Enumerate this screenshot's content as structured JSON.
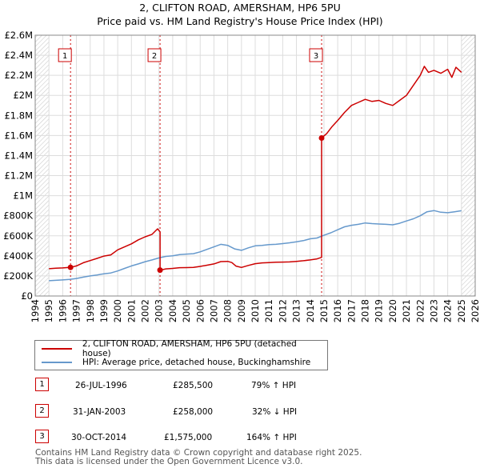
{
  "title_line1": "2, CLIFTON ROAD, AMERSHAM, HP6 5PU",
  "title_line2": "Price paid vs. HM Land Registry's House Price Index (HPI)",
  "colors": {
    "red": "#cc0000",
    "blue": "#6699cc",
    "hatch": "#cccccc",
    "vline": "#cc0000"
  },
  "chart_data": {
    "type": "line",
    "title": "2, CLIFTON ROAD, AMERSHAM, HP6 5PU — Price paid vs. HM Land Registry's House Price Index (HPI)",
    "xlabel": "",
    "ylabel": "",
    "xlim": [
      1994,
      2026
    ],
    "ylim": [
      0,
      2600000
    ],
    "y_ticks": [
      0,
      200000,
      400000,
      600000,
      800000,
      1000000,
      1200000,
      1400000,
      1600000,
      1800000,
      2000000,
      2200000,
      2400000,
      2600000
    ],
    "y_tick_labels": [
      "£0",
      "£200K",
      "£400K",
      "£600K",
      "£800K",
      "£1M",
      "£1.2M",
      "£1.4M",
      "£1.6M",
      "£1.8M",
      "£2M",
      "£2.2M",
      "£2.4M",
      "£2.6M"
    ],
    "x_ticks": [
      1994,
      1995,
      1996,
      1997,
      1998,
      1999,
      2000,
      2001,
      2002,
      2003,
      2004,
      2005,
      2006,
      2007,
      2008,
      2009,
      2010,
      2011,
      2012,
      2013,
      2014,
      2015,
      2016,
      2017,
      2018,
      2019,
      2020,
      2021,
      2022,
      2023,
      2024,
      2025,
      2026
    ],
    "x_tick_labels": [
      "1994",
      "1995",
      "1996",
      "1997",
      "1998",
      "1999",
      "2000",
      "2001",
      "2002",
      "2003",
      "2004",
      "2005",
      "2006",
      "2007",
      "2008",
      "2009",
      "2010",
      "2011",
      "2012",
      "2013",
      "2014",
      "2015",
      "2016",
      "2017",
      "2018",
      "2019",
      "2020",
      "2021",
      "2022",
      "2023",
      "2024",
      "2025",
      "2026"
    ],
    "hatched_ranges": [
      [
        1994,
        1995
      ],
      [
        2025,
        2026
      ]
    ],
    "grid": true,
    "series": [
      {
        "name": "2, CLIFTON ROAD, AMERSHAM, HP6 5PU (detached house)",
        "color": "#cc0000",
        "x": [
          1995.0,
          1995.5,
          1996.0,
          1996.3,
          1996.57,
          1996.57,
          1997.0,
          1997.5,
          1998.0,
          1998.5,
          1999.0,
          1999.5,
          2000.0,
          2000.5,
          2001.0,
          2001.5,
          2002.0,
          2002.5,
          2002.9,
          2003.08,
          2003.08,
          2003.5,
          2004.0,
          2004.5,
          2005.0,
          2005.5,
          2006.0,
          2006.5,
          2007.0,
          2007.5,
          2008.0,
          2008.3,
          2008.6,
          2009.0,
          2009.5,
          2010.0,
          2010.5,
          2011.0,
          2011.5,
          2012.0,
          2012.5,
          2013.0,
          2013.5,
          2014.0,
          2014.5,
          2014.83,
          2014.83,
          2015.2,
          2015.6,
          2016.0,
          2016.5,
          2017.0,
          2017.5,
          2018.0,
          2018.5,
          2019.0,
          2019.5,
          2020.0,
          2020.5,
          2021.0,
          2021.5,
          2022.0,
          2022.3,
          2022.6,
          2023.0,
          2023.5,
          2024.0,
          2024.3,
          2024.6,
          2025.0
        ],
        "values": [
          272000,
          277000,
          280000,
          283000,
          285500,
          285500,
          300000,
          332000,
          353000,
          375000,
          398000,
          410000,
          460000,
          490000,
          520000,
          560000,
          590000,
          615000,
          670000,
          640000,
          258000,
          270000,
          275000,
          282000,
          283000,
          285000,
          295000,
          307000,
          320000,
          343000,
          345000,
          333000,
          298000,
          285000,
          305000,
          322000,
          330000,
          333000,
          337000,
          338000,
          340000,
          345000,
          352000,
          360000,
          370000,
          385000,
          1575000,
          1620000,
          1690000,
          1750000,
          1830000,
          1900000,
          1930000,
          1960000,
          1940000,
          1950000,
          1920000,
          1900000,
          1950000,
          2000000,
          2100000,
          2200000,
          2290000,
          2230000,
          2250000,
          2220000,
          2260000,
          2180000,
          2280000,
          2230000
        ]
      },
      {
        "name": "HPI: Average price, detached house, Buckinghamshire",
        "color": "#6699cc",
        "x": [
          1995.0,
          1995.5,
          1996.0,
          1996.5,
          1997.0,
          1997.5,
          1998.0,
          1998.5,
          1999.0,
          1999.5,
          2000.0,
          2000.5,
          2001.0,
          2001.5,
          2002.0,
          2002.5,
          2003.0,
          2003.5,
          2004.0,
          2004.5,
          2005.0,
          2005.5,
          2006.0,
          2006.5,
          2007.0,
          2007.5,
          2008.0,
          2008.5,
          2009.0,
          2009.5,
          2010.0,
          2010.5,
          2011.0,
          2011.5,
          2012.0,
          2012.5,
          2013.0,
          2013.5,
          2014.0,
          2014.5,
          2015.0,
          2015.5,
          2016.0,
          2016.5,
          2017.0,
          2017.5,
          2018.0,
          2018.5,
          2019.0,
          2019.5,
          2020.0,
          2020.5,
          2021.0,
          2021.5,
          2022.0,
          2022.5,
          2023.0,
          2023.5,
          2024.0,
          2024.5,
          2025.0
        ],
        "values": [
          152000,
          156000,
          160000,
          165000,
          175000,
          188000,
          200000,
          210000,
          222000,
          230000,
          250000,
          275000,
          300000,
          320000,
          342000,
          360000,
          380000,
          395000,
          400000,
          412000,
          418000,
          422000,
          440000,
          465000,
          490000,
          515000,
          505000,
          470000,
          455000,
          480000,
          500000,
          505000,
          512000,
          515000,
          522000,
          530000,
          540000,
          552000,
          570000,
          578000,
          605000,
          630000,
          660000,
          690000,
          705000,
          715000,
          728000,
          722000,
          718000,
          715000,
          710000,
          725000,
          748000,
          770000,
          800000,
          840000,
          852000,
          835000,
          830000,
          840000,
          850000
        ]
      }
    ],
    "sales": [
      {
        "label": "1",
        "x": 1996.57,
        "value": 285500
      },
      {
        "label": "2",
        "x": 2003.08,
        "value": 258000
      },
      {
        "label": "3",
        "x": 2014.83,
        "value": 1575000
      }
    ]
  },
  "legend": {
    "red_label": "2, CLIFTON ROAD, AMERSHAM, HP6 5PU (detached house)",
    "blue_label": "HPI: Average price, detached house, Buckinghamshire"
  },
  "sales_table": [
    {
      "num": "1",
      "date": "26-JUL-1996",
      "price": "£285,500",
      "hpi": "79% ↑ HPI"
    },
    {
      "num": "2",
      "date": "31-JAN-2003",
      "price": "£258,000",
      "hpi": "32% ↓ HPI"
    },
    {
      "num": "3",
      "date": "30-OCT-2014",
      "price": "£1,575,000",
      "hpi": "164% ↑ HPI"
    }
  ],
  "footer_line1": "Contains HM Land Registry data © Crown copyright and database right 2025.",
  "footer_line2": "This data is licensed under the Open Government Licence v3.0."
}
